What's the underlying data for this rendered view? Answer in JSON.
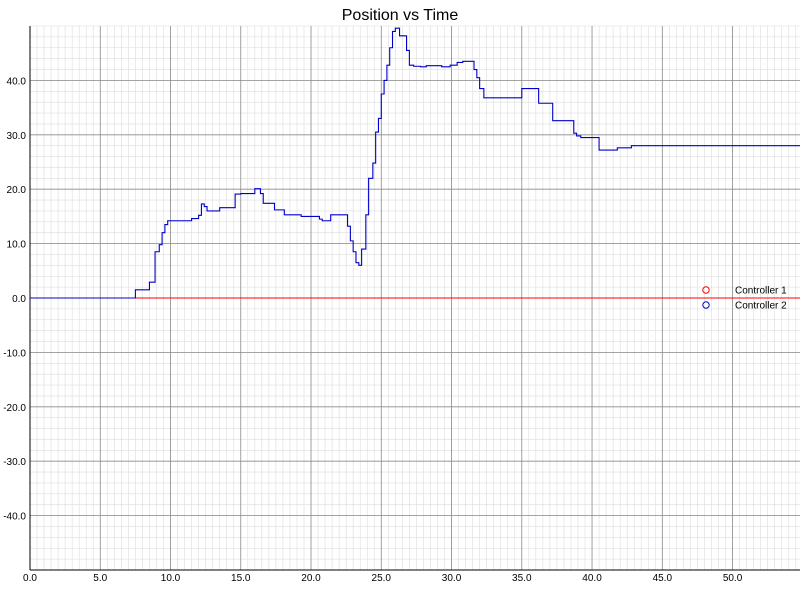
{
  "chart_data": {
    "type": "line",
    "title": "Position vs Time",
    "xlabel": "",
    "ylabel": "",
    "xlim": [
      0,
      54.8
    ],
    "ylim": [
      -50,
      50
    ],
    "x_ticks": [
      0,
      5,
      10,
      15,
      20,
      25,
      30,
      35,
      40,
      45,
      50
    ],
    "x_tick_labels": [
      "0.0",
      "5.0",
      "10.0",
      "15.0",
      "20.0",
      "25.0",
      "30.0",
      "35.0",
      "40.0",
      "45.0",
      "50.0"
    ],
    "y_ticks": [
      40,
      30,
      20,
      10,
      0,
      -10,
      -20,
      -30,
      -40
    ],
    "y_tick_labels": [
      "40.0",
      "30.0",
      "20.0",
      "10.0",
      "0.0",
      "-10.0",
      "-20.0",
      "-30.0",
      "-40.0"
    ],
    "grid": true,
    "legend_position": "right",
    "series": [
      {
        "name": "Controller 1",
        "color": "#ff0000",
        "marker": "circle",
        "step": true,
        "x": [
          0,
          54.8
        ],
        "y": [
          0,
          0
        ]
      },
      {
        "name": "Controller 2",
        "color": "#0000cc",
        "marker": "circle",
        "step": true,
        "x": [
          0,
          7.5,
          8.5,
          8.9,
          9.2,
          9.4,
          9.6,
          9.8,
          11.5,
          12.0,
          12.2,
          12.4,
          12.6,
          13.5,
          14.6,
          15.0,
          16.0,
          16.4,
          16.6,
          17.4,
          18.1,
          19.3,
          20.6,
          20.8,
          21.4,
          22.6,
          22.8,
          23.0,
          23.2,
          23.4,
          23.6,
          23.9,
          24.1,
          24.4,
          24.6,
          24.8,
          25.0,
          25.2,
          25.4,
          25.6,
          25.8,
          26.0,
          26.3,
          26.8,
          27.0,
          27.3,
          27.8,
          28.2,
          29.3,
          29.9,
          30.4,
          30.8,
          31.6,
          31.8,
          32.0,
          32.3,
          35.0,
          36.2,
          37.2,
          38.7,
          38.9,
          39.2,
          40.5,
          41.8,
          42.8,
          54.8
        ],
        "y": [
          0,
          1.5,
          2.9,
          8.5,
          9.8,
          12.0,
          13.5,
          14.2,
          14.6,
          15.2,
          17.3,
          16.8,
          16.0,
          16.6,
          19.1,
          19.2,
          20.1,
          19.2,
          17.4,
          16.2,
          15.3,
          15.0,
          14.5,
          14.2,
          15.3,
          13.2,
          10.5,
          8.5,
          6.5,
          6.0,
          9.0,
          15.3,
          22.0,
          24.8,
          30.5,
          33.0,
          37.5,
          40.0,
          42.8,
          46.0,
          49.0,
          49.6,
          48.2,
          45.5,
          42.8,
          42.6,
          42.5,
          42.7,
          42.5,
          42.8,
          43.3,
          43.5,
          42.0,
          40.5,
          38.5,
          36.8,
          38.5,
          35.8,
          32.6,
          30.3,
          29.8,
          29.5,
          27.2,
          27.6,
          28.0,
          28.0
        ]
      }
    ]
  }
}
